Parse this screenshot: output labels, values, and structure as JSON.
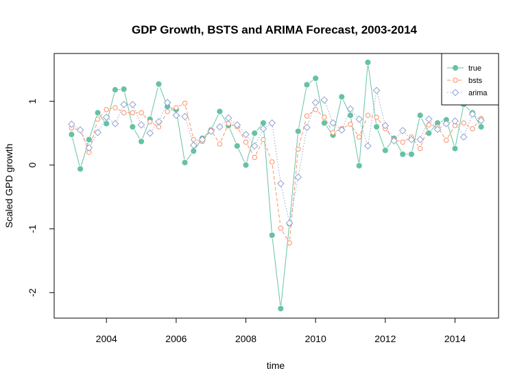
{
  "chart_data": {
    "type": "line",
    "title": "GDP Growth, BSTS and ARIMA Forecast, 2003-2014",
    "xlabel": "time",
    "ylabel": "Scaled GPD growth",
    "xlim": [
      2002.5,
      2015.25
    ],
    "ylim": [
      -2.4,
      1.75
    ],
    "xticks": [
      2004,
      2006,
      2008,
      2010,
      2012,
      2014
    ],
    "yticks": [
      -2,
      -1,
      0,
      1
    ],
    "grid": false,
    "legend_position": "top-right",
    "x": [
      2003.0,
      2003.25,
      2003.5,
      2003.75,
      2004.0,
      2004.25,
      2004.5,
      2004.75,
      2005.0,
      2005.25,
      2005.5,
      2005.75,
      2006.0,
      2006.25,
      2006.5,
      2006.75,
      2007.0,
      2007.25,
      2007.5,
      2007.75,
      2008.0,
      2008.25,
      2008.5,
      2008.75,
      2009.0,
      2009.25,
      2009.5,
      2009.75,
      2010.0,
      2010.25,
      2010.5,
      2010.75,
      2011.0,
      2011.25,
      2011.5,
      2011.75,
      2012.0,
      2012.25,
      2012.5,
      2012.75,
      2013.0,
      2013.25,
      2013.5,
      2013.75,
      2014.0,
      2014.25,
      2014.5,
      2014.75
    ],
    "series": [
      {
        "name": "true",
        "color": "#66c2a5",
        "marker": "filled-circle",
        "line": "solid",
        "values": [
          0.48,
          -0.06,
          0.4,
          0.82,
          0.65,
          1.18,
          1.19,
          0.6,
          0.37,
          0.72,
          1.27,
          0.92,
          0.87,
          0.04,
          0.22,
          0.42,
          0.55,
          0.84,
          0.62,
          0.3,
          0.0,
          0.5,
          0.66,
          -1.1,
          -2.25,
          -0.92,
          0.53,
          1.26,
          1.36,
          0.66,
          0.47,
          1.07,
          0.78,
          -0.01,
          1.61,
          0.6,
          0.23,
          0.42,
          0.17,
          0.17,
          0.78,
          0.5,
          0.66,
          0.71,
          0.26,
          0.95,
          0.82,
          0.6
        ]
      },
      {
        "name": "bsts",
        "color": "#fc8d62",
        "marker": "open-circle",
        "line": "dashed",
        "values": [
          0.58,
          0.55,
          0.2,
          0.72,
          0.87,
          0.9,
          0.82,
          0.82,
          0.82,
          0.68,
          0.6,
          0.84,
          0.9,
          0.97,
          0.4,
          0.37,
          0.55,
          0.33,
          0.65,
          0.6,
          0.36,
          0.12,
          0.4,
          0.05,
          -0.99,
          -1.22,
          0.25,
          0.77,
          0.87,
          0.75,
          0.51,
          0.57,
          0.64,
          0.44,
          0.78,
          0.75,
          0.57,
          0.4,
          0.36,
          0.44,
          0.26,
          0.63,
          0.6,
          0.39,
          0.62,
          0.66,
          0.57,
          0.73
        ]
      },
      {
        "name": "arima",
        "color": "#8da0cb",
        "marker": "open-diamond",
        "line": "dotted",
        "values": [
          0.64,
          0.55,
          0.27,
          0.51,
          0.75,
          0.65,
          0.95,
          0.95,
          0.63,
          0.5,
          0.68,
          0.98,
          0.78,
          0.76,
          0.31,
          0.4,
          0.53,
          0.6,
          0.74,
          0.63,
          0.48,
          0.3,
          0.57,
          0.66,
          -0.29,
          -0.91,
          -0.19,
          0.59,
          0.98,
          1.02,
          0.66,
          0.55,
          0.88,
          0.72,
          0.3,
          1.17,
          0.62,
          0.38,
          0.54,
          0.4,
          0.4,
          0.72,
          0.56,
          0.65,
          0.69,
          0.44,
          0.8,
          0.7
        ]
      }
    ]
  }
}
